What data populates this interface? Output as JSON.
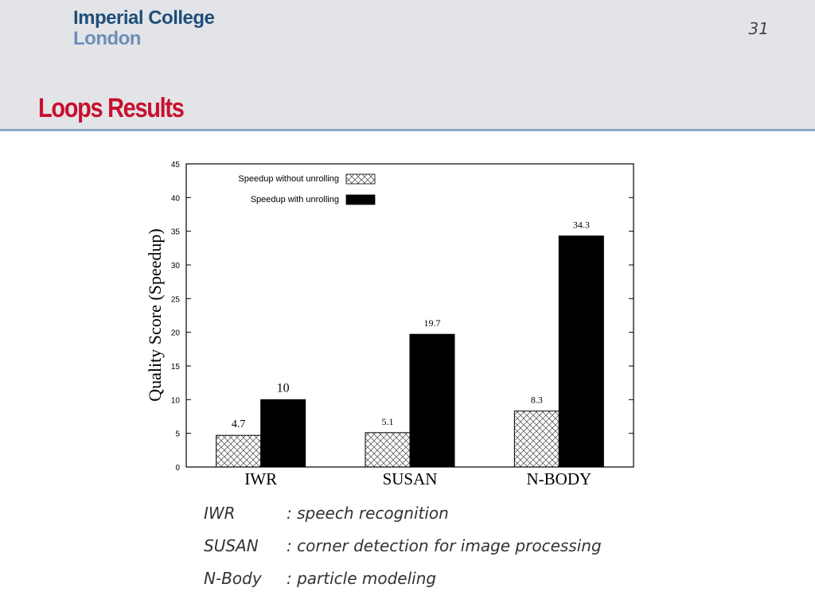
{
  "header": {
    "logo_line1": "Imperial College",
    "logo_line2": "London",
    "page_number": "31",
    "title": "Loops Results"
  },
  "chart_data": {
    "type": "bar",
    "categories": [
      "IWR",
      "SUSAN",
      "N-BODY"
    ],
    "series": [
      {
        "name": "Speedup without unrolling",
        "values": [
          4.7,
          5.1,
          8.3
        ],
        "pattern": "crosshatch",
        "labels": [
          "4.7",
          "5.1",
          "8.3"
        ]
      },
      {
        "name": "Speedup with unrolling",
        "values": [
          10,
          19.7,
          34.3
        ],
        "pattern": "solid",
        "color": "#000000",
        "labels": [
          "10",
          "19.7",
          "34.3"
        ]
      }
    ],
    "ylabel": "Quality Score (Speedup)",
    "ylim": [
      0,
      45
    ],
    "yticks": [
      "0",
      "5",
      "10",
      "15",
      "20",
      "25",
      "30",
      "35",
      "40",
      "45"
    ],
    "legend_position": "top-left"
  },
  "benchmarks": [
    {
      "name": "IWR",
      "description": ": speech recognition"
    },
    {
      "name": "SUSAN",
      "description": ": corner detection for image processing"
    },
    {
      "name": "N-Body",
      "description": ": particle modeling"
    }
  ]
}
